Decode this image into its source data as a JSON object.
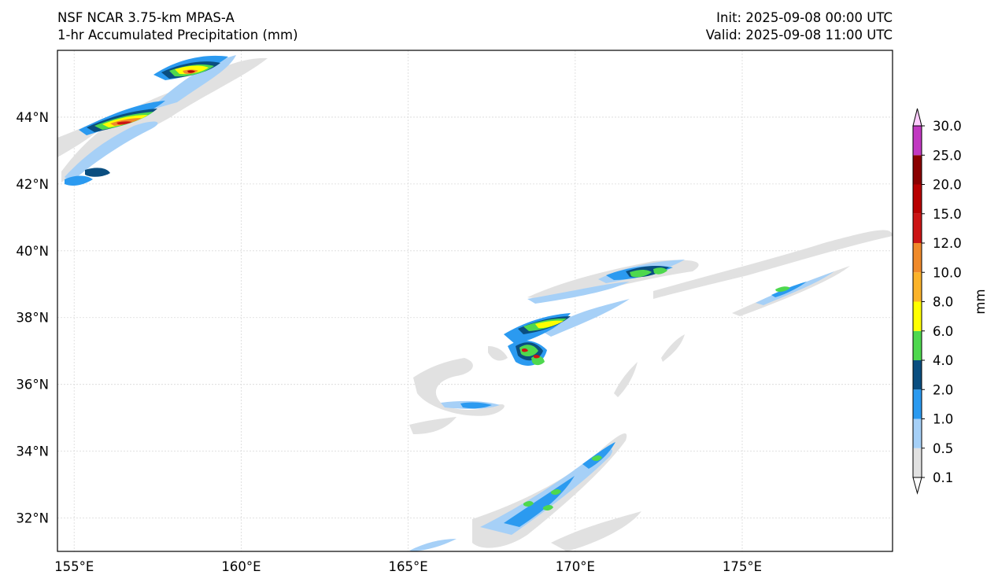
{
  "header": {
    "model": "NSF NCAR 3.75-km MPAS-A",
    "field": "1-hr Accumulated Precipitation (mm)",
    "init": "Init: 2025-09-08 00:00 UTC",
    "valid": "Valid: 2025-09-08 11:00 UTC"
  },
  "map": {
    "lon_range": [
      154.5,
      179.5
    ],
    "lat_range": [
      31.0,
      46.0
    ],
    "lon_ticks": [
      {
        "value": 155,
        "label": "155°E"
      },
      {
        "value": 160,
        "label": "160°E"
      },
      {
        "value": 165,
        "label": "165°E"
      },
      {
        "value": 170,
        "label": "170°E"
      },
      {
        "value": 175,
        "label": "175°E"
      }
    ],
    "lat_ticks": [
      {
        "value": 32,
        "label": "32°N"
      },
      {
        "value": 34,
        "label": "34°N"
      },
      {
        "value": 36,
        "label": "36°N"
      },
      {
        "value": 38,
        "label": "38°N"
      },
      {
        "value": 40,
        "label": "40°N"
      },
      {
        "value": 42,
        "label": "42°N"
      },
      {
        "value": 44,
        "label": "44°N"
      }
    ],
    "gridlines": true
  },
  "colorbar": {
    "unit_label": "mm",
    "levels": [
      {
        "label": "0.1",
        "color": "#e1e1e1"
      },
      {
        "label": "0.5",
        "color": "#a6d0f7"
      },
      {
        "label": "1.0",
        "color": "#2b9af0"
      },
      {
        "label": "2.0",
        "color": "#0a4e80"
      },
      {
        "label": "4.0",
        "color": "#4ed84e"
      },
      {
        "label": "6.0",
        "color": "#ffff00"
      },
      {
        "label": "8.0",
        "color": "#fbb32a"
      },
      {
        "label": "10.0",
        "color": "#f08a2a"
      },
      {
        "label": "12.0",
        "color": "#cc1414"
      },
      {
        "label": "15.0",
        "color": "#b80000"
      },
      {
        "label": "20.0",
        "color": "#8a0000"
      },
      {
        "label": "25.0",
        "color": "#c238c2"
      },
      {
        "label": "30.0",
        "color": "#ffccff"
      }
    ]
  }
}
